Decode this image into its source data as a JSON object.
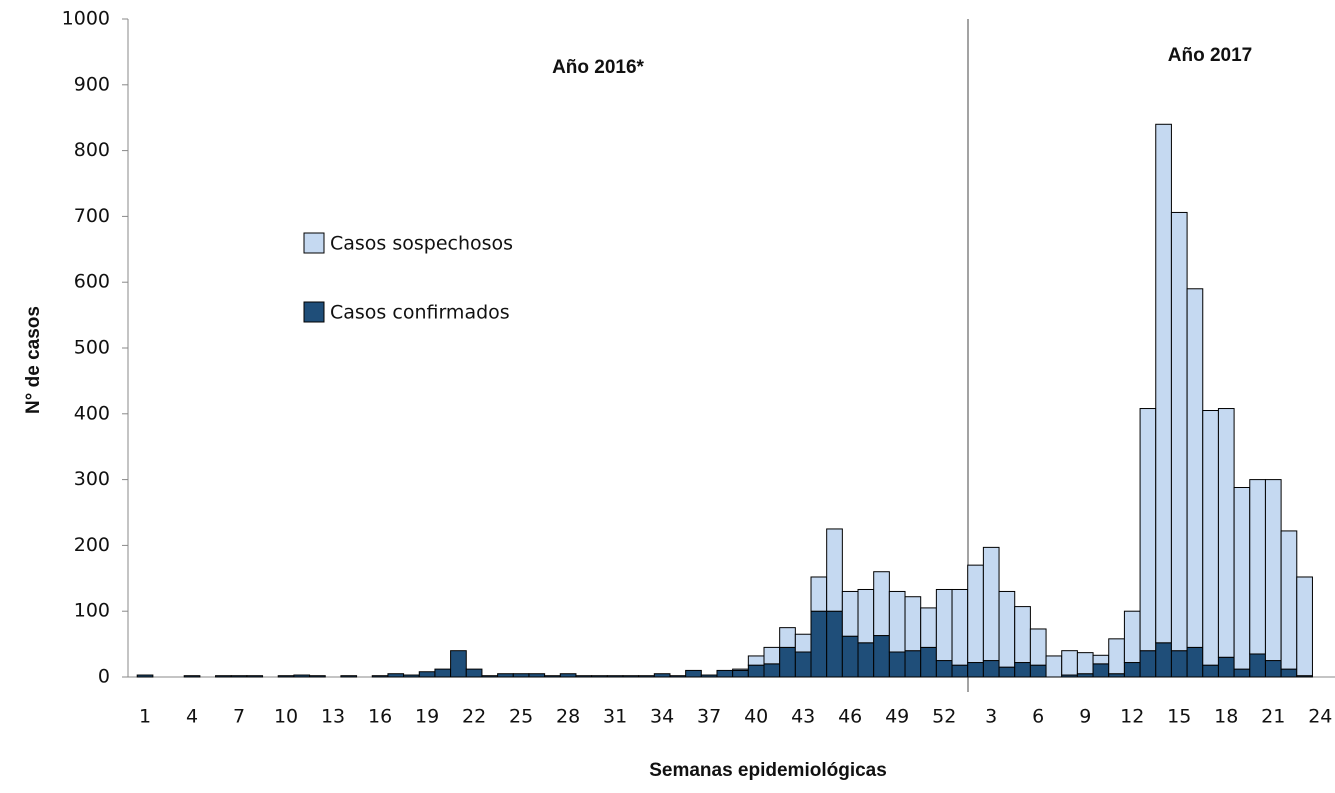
{
  "chart_data": {
    "type": "stacked_bar",
    "y_label": "N° de casos",
    "x_label": "Semanas epidemiológicas",
    "annotations": [
      "Año 2016*",
      "Año 2017"
    ],
    "categories": [
      "1",
      null,
      null,
      "4",
      null,
      null,
      "7",
      null,
      null,
      "10",
      null,
      null,
      "13",
      null,
      null,
      "16",
      null,
      null,
      "19",
      null,
      null,
      "22",
      null,
      null,
      "25",
      null,
      null,
      "28",
      null,
      null,
      "31",
      null,
      null,
      "34",
      null,
      null,
      "37",
      null,
      null,
      "40",
      null,
      null,
      "43",
      null,
      null,
      "46",
      null,
      null,
      "49",
      null,
      null,
      "52",
      null,
      null,
      "3",
      null,
      null,
      "6",
      null,
      null,
      "9",
      null,
      null,
      "12",
      null,
      null,
      "15",
      null,
      null,
      "18",
      null,
      null,
      "21",
      null,
      null,
      "24"
    ],
    "series": [
      {
        "name": "Casos confirmados",
        "color": "#1f4e79",
        "values": [
          3,
          0,
          0,
          2,
          0,
          2,
          2,
          2,
          0,
          2,
          3,
          2,
          0,
          2,
          0,
          2,
          5,
          3,
          8,
          12,
          40,
          12,
          2,
          5,
          5,
          5,
          2,
          5,
          2,
          2,
          2,
          2,
          2,
          5,
          2,
          10,
          3,
          10,
          10,
          18,
          20,
          45,
          38,
          100,
          100,
          62,
          52,
          63,
          38,
          40,
          45,
          25,
          18,
          22,
          25,
          15,
          22,
          18,
          0,
          3,
          5,
          20,
          5,
          22,
          40,
          52,
          40,
          45,
          18,
          30,
          12,
          35,
          25,
          12,
          2,
          0
        ]
      },
      {
        "name": "Casos sospechosos",
        "color": "#c5d9f1",
        "values": [
          0,
          0,
          0,
          0,
          0,
          0,
          0,
          0,
          0,
          0,
          0,
          0,
          0,
          0,
          0,
          0,
          0,
          0,
          0,
          0,
          0,
          0,
          0,
          0,
          0,
          0,
          0,
          0,
          0,
          0,
          0,
          0,
          0,
          0,
          0,
          0,
          0,
          0,
          2,
          14,
          25,
          30,
          27,
          52,
          125,
          68,
          81,
          97,
          92,
          82,
          60,
          108,
          115,
          148,
          172,
          115,
          85,
          55,
          32,
          37,
          32,
          13,
          53,
          78,
          368,
          788,
          666,
          545,
          387,
          378,
          276,
          265,
          275,
          210,
          150,
          0
        ]
      }
    ],
    "ylim": [
      0,
      1000
    ],
    "yticks": [
      0,
      100,
      200,
      300,
      400,
      500,
      600,
      700,
      800,
      900,
      1000
    ],
    "grid": false
  }
}
